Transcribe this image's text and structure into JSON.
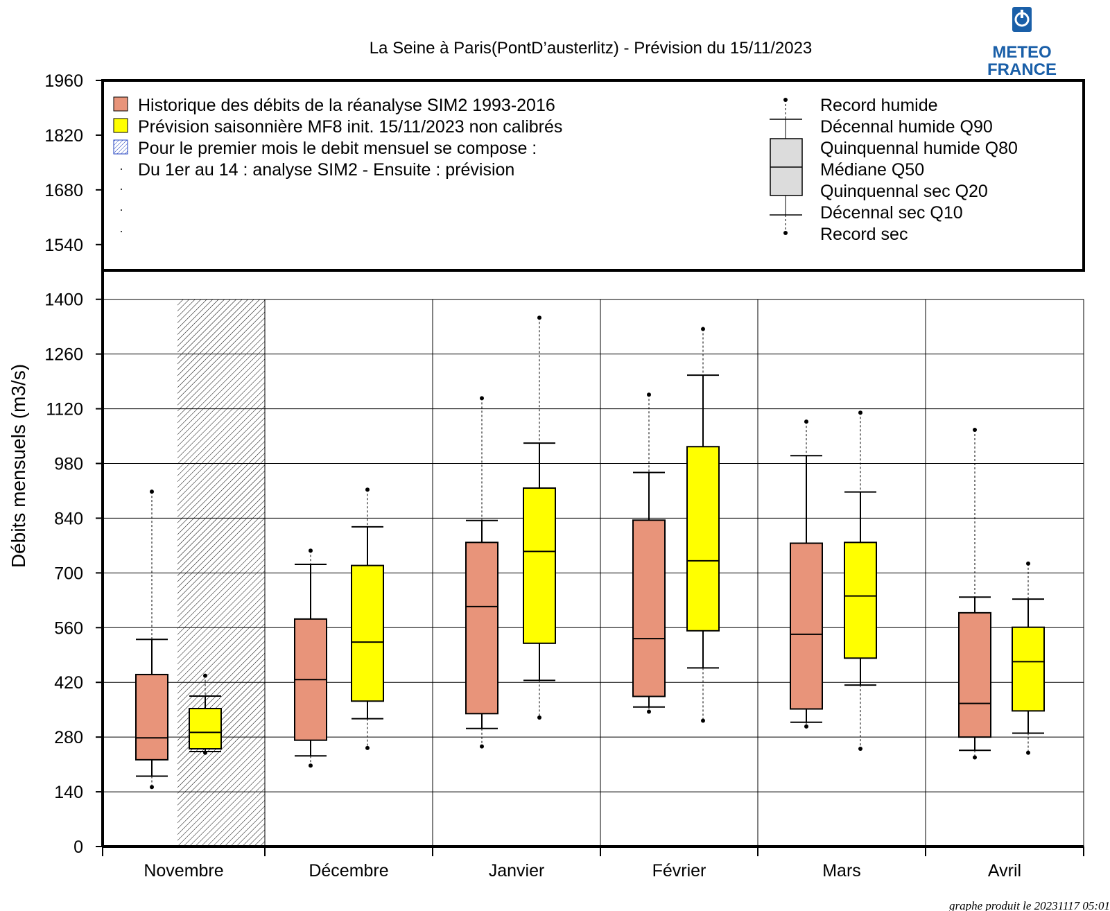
{
  "chart_data": {
    "type": "box",
    "title": "La Seine à Paris(PontD’austerlitz) - Prévision du 15/11/2023",
    "ylabel": "Débits mensuels (m3/s)",
    "xlabel": "",
    "ylim": [
      0,
      1960
    ],
    "yticks": [
      0,
      140,
      280,
      420,
      560,
      700,
      840,
      980,
      1120,
      1260,
      1400,
      1540,
      1680,
      1820,
      1960
    ],
    "grid": "horizontal and month separators",
    "categories": [
      "Novembre",
      "Décembre",
      "Janvier",
      "Février",
      "Mars",
      "Avril"
    ],
    "colors": {
      "historique": "#e8947a",
      "prevision": "#ffff00",
      "legend_box": "#dcdcdc",
      "hatch": "#000000",
      "grid": "#000000"
    },
    "series": [
      {
        "name": "Historique des débits de la réanalyse SIM2 1993-2016",
        "color": "#e8947a",
        "boxes": [
          {
            "category": "Novembre",
            "record_sec": 152,
            "q10": 180,
            "q20": 222,
            "q50": 278,
            "q80": 440,
            "q90": 530,
            "record_humide": 908
          },
          {
            "category": "Décembre",
            "record_sec": 207,
            "q10": 232,
            "q20": 272,
            "q50": 427,
            "q80": 582,
            "q90": 722,
            "record_humide": 757
          },
          {
            "category": "Janvier",
            "record_sec": 256,
            "q10": 302,
            "q20": 340,
            "q50": 614,
            "q80": 778,
            "q90": 834,
            "record_humide": 1147
          },
          {
            "category": "Février",
            "record_sec": 345,
            "q10": 357,
            "q20": 384,
            "q50": 532,
            "q80": 835,
            "q90": 957,
            "record_humide": 1156
          },
          {
            "category": "Mars",
            "record_sec": 307,
            "q10": 318,
            "q20": 352,
            "q50": 543,
            "q80": 776,
            "q90": 1000,
            "record_humide": 1087
          },
          {
            "category": "Avril",
            "record_sec": 228,
            "q10": 246,
            "q20": 280,
            "q50": 366,
            "q80": 598,
            "q90": 638,
            "record_humide": 1066
          }
        ]
      },
      {
        "name": "Prévision saisonnière MF8 init. 15/11/2023 non calibrés",
        "color": "#ffff00",
        "boxes": [
          {
            "category": "Novembre",
            "record_sec": 240,
            "q10": 243,
            "q20": 250,
            "q50": 292,
            "q80": 353,
            "q90": 385,
            "record_humide": 437
          },
          {
            "category": "Décembre",
            "record_sec": 252,
            "q10": 327,
            "q20": 372,
            "q50": 523,
            "q80": 719,
            "q90": 818,
            "record_humide": 913
          },
          {
            "category": "Janvier",
            "record_sec": 330,
            "q10": 425,
            "q20": 520,
            "q50": 755,
            "q80": 917,
            "q90": 1032,
            "record_humide": 1353
          },
          {
            "category": "Février",
            "record_sec": 322,
            "q10": 457,
            "q20": 552,
            "q50": 731,
            "q80": 1023,
            "q90": 1206,
            "record_humide": 1324
          },
          {
            "category": "Mars",
            "record_sec": 250,
            "q10": 413,
            "q20": 482,
            "q50": 641,
            "q80": 778,
            "q90": 907,
            "record_humide": 1110
          },
          {
            "category": "Avril",
            "record_sec": 240,
            "q10": 290,
            "q20": 347,
            "q50": 473,
            "q80": 561,
            "q90": 633,
            "record_humide": 724
          }
        ]
      }
    ],
    "legend_left": [
      {
        "kind": "swatch",
        "color": "#e8947a",
        "text": "Historique des débits de la réanalyse SIM2 1993-2016"
      },
      {
        "kind": "swatch",
        "color": "#ffff00",
        "text": "Prévision saisonnière MF8 init. 15/11/2023 non calibrés"
      },
      {
        "kind": "hatch",
        "color": "#1f3fbf",
        "text": "Pour le premier mois le debit mensuel se compose :"
      },
      {
        "kind": "dot",
        "color": "#000000",
        "text": "Du 1er au 14 : analyse SIM2 - Ensuite : prévision"
      }
    ],
    "legend_right": [
      "Record humide",
      "Décennal humide Q90",
      "Quinquennal humide Q80",
      "Médiane Q50",
      "Quinquennal sec Q20",
      "Décennal sec Q10",
      "Record sec"
    ],
    "legend_placement": "top, inside plot frame",
    "footer": "graphe produit le 20231117 05:01"
  },
  "logo": {
    "line1": "METEO",
    "line2": "FRANCE",
    "color": "#1a5fa8"
  }
}
